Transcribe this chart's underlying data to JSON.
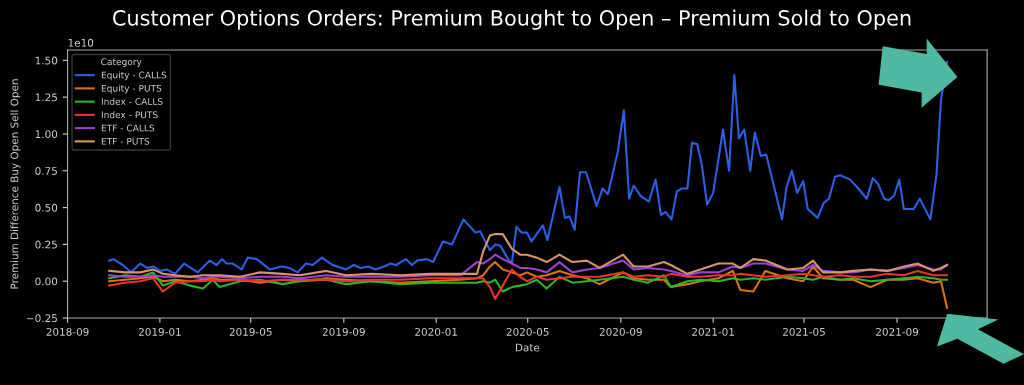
{
  "chart_data": {
    "type": "line",
    "title": "Customer Options Orders: Premium Bought to Open – Premium Sold to Open",
    "xlabel": "Date",
    "ylabel": "Premium Difference Buy Open Sell Open",
    "legend_title": "Category",
    "annotations": [
      "1e10"
    ],
    "x": [
      "2018-10-26",
      "2018-11-16",
      "2018-12-06",
      "2018-12-23",
      "2019-01-05",
      "2019-01-21",
      "2019-02-10",
      "2019-02-27",
      "2019-03-12",
      "2019-03-21",
      "2019-04-17",
      "2019-05-13",
      "2019-06-12",
      "2019-07-05",
      "2019-08-09",
      "2019-09-04",
      "2019-10-07",
      "2019-11-15",
      "2019-12-24",
      "2020-02-02",
      "2020-02-24",
      "2020-03-03",
      "2020-03-12",
      "2020-03-19",
      "2020-03-29",
      "2020-04-10",
      "2020-04-21",
      "2020-04-30",
      "2020-05-13",
      "2020-05-26",
      "2020-06-12",
      "2020-06-29",
      "2020-07-18",
      "2020-08-04",
      "2020-09-04",
      "2020-09-18",
      "2020-10-07",
      "2020-10-28",
      "2020-11-06",
      "2020-11-28",
      "2020-12-15",
      "2021-01-08",
      "2021-01-27",
      "2021-02-06",
      "2021-02-23",
      "2021-03-11",
      "2021-04-09",
      "2021-04-30",
      "2021-05-13",
      "2021-05-26",
      "2021-06-18",
      "2021-07-05",
      "2021-07-28",
      "2021-08-19",
      "2021-09-10",
      "2021-09-28",
      "2021-10-19",
      "2021-10-29",
      "2021-11-06"
    ],
    "series": [
      {
        "name": "Equity - CALLS",
        "color": "#2f5fe0",
        "x": [
          "2018-10-26",
          "2018-11-01",
          "2018-11-13",
          "2018-11-24",
          "2018-12-06",
          "2018-12-15",
          "2018-12-24",
          "2019-01-01",
          "2019-01-10",
          "2019-01-21",
          "2019-02-02",
          "2019-02-20",
          "2019-03-08",
          "2019-03-17",
          "2019-03-24",
          "2019-03-30",
          "2019-04-07",
          "2019-04-19",
          "2019-04-27",
          "2019-05-09",
          "2019-05-26",
          "2019-06-11",
          "2019-06-21",
          "2019-07-02",
          "2019-07-13",
          "2019-07-22",
          "2019-08-03",
          "2019-08-17",
          "2019-09-04",
          "2019-09-14",
          "2019-09-23",
          "2019-10-03",
          "2019-10-13",
          "2019-10-24",
          "2019-11-02",
          "2019-11-09",
          "2019-11-22",
          "2019-11-30",
          "2019-12-07",
          "2019-12-20",
          "2019-12-28",
          "2020-01-10",
          "2020-01-22",
          "2020-02-06",
          "2020-02-22",
          "2020-02-28",
          "2020-03-12",
          "2020-03-19",
          "2020-03-26",
          "2020-04-05",
          "2020-04-10",
          "2020-04-16",
          "2020-04-23",
          "2020-04-30",
          "2020-05-06",
          "2020-05-21",
          "2020-05-27",
          "2020-06-12",
          "2020-06-19",
          "2020-06-25",
          "2020-07-02",
          "2020-07-09",
          "2020-07-17",
          "2020-07-31",
          "2020-08-08",
          "2020-08-15",
          "2020-08-28",
          "2020-09-05",
          "2020-09-12",
          "2020-09-18",
          "2020-09-27",
          "2020-10-08",
          "2020-10-17",
          "2020-10-24",
          "2020-10-30",
          "2020-11-07",
          "2020-11-14",
          "2020-11-21",
          "2020-11-28",
          "2020-12-04",
          "2020-12-11",
          "2020-12-17",
          "2020-12-24",
          "2021-01-01",
          "2021-01-14",
          "2021-01-22",
          "2021-01-29",
          "2021-02-04",
          "2021-02-11",
          "2021-02-19",
          "2021-02-25",
          "2021-03-05",
          "2021-03-12",
          "2021-04-02",
          "2021-04-08",
          "2021-04-15",
          "2021-04-22",
          "2021-04-30",
          "2021-05-06",
          "2021-05-19",
          "2021-05-27",
          "2021-06-03",
          "2021-06-11",
          "2021-06-18",
          "2021-07-01",
          "2021-07-10",
          "2021-07-23",
          "2021-07-31",
          "2021-08-07",
          "2021-08-15",
          "2021-08-21",
          "2021-08-28",
          "2021-09-04",
          "2021-09-10",
          "2021-09-23",
          "2021-10-01",
          "2021-10-15",
          "2021-10-23",
          "2021-10-29",
          "2021-11-06"
        ],
        "values": [
          0.14,
          0.15,
          0.11,
          0.06,
          0.12,
          0.09,
          0.1,
          0.07,
          0.08,
          0.05,
          0.12,
          0.06,
          0.14,
          0.11,
          0.15,
          0.12,
          0.12,
          0.08,
          0.16,
          0.15,
          0.08,
          0.1,
          0.09,
          0.06,
          0.12,
          0.11,
          0.16,
          0.11,
          0.08,
          0.11,
          0.09,
          0.1,
          0.08,
          0.1,
          0.12,
          0.11,
          0.15,
          0.11,
          0.14,
          0.15,
          0.13,
          0.27,
          0.25,
          0.42,
          0.33,
          0.34,
          0.21,
          0.25,
          0.24,
          0.15,
          0.12,
          0.37,
          0.33,
          0.33,
          0.27,
          0.38,
          0.28,
          0.64,
          0.43,
          0.44,
          0.35,
          0.74,
          0.74,
          0.51,
          0.63,
          0.59,
          0.88,
          1.16,
          0.56,
          0.65,
          0.58,
          0.54,
          0.69,
          0.45,
          0.47,
          0.42,
          0.61,
          0.63,
          0.63,
          0.94,
          0.93,
          0.79,
          0.52,
          0.6,
          1.03,
          0.75,
          1.4,
          0.97,
          1.03,
          0.75,
          1.01,
          0.85,
          0.86,
          0.42,
          0.64,
          0.75,
          0.6,
          0.68,
          0.49,
          0.43,
          0.53,
          0.56,
          0.71,
          0.72,
          0.69,
          0.64,
          0.56,
          0.7,
          0.66,
          0.56,
          0.55,
          0.58,
          0.69,
          0.49,
          0.49,
          0.56,
          0.42,
          0.72,
          1.23,
          1.49
        ]
      },
      {
        "name": "Equity - PUTS",
        "color": "#d9730d",
        "values": [
          0.0,
          0.01,
          0.02,
          0.03,
          0.0,
          0.01,
          0.0,
          0.01,
          0.02,
          0.01,
          0.01,
          -0.01,
          0.01,
          0.0,
          0.02,
          0.01,
          0.0,
          -0.01,
          0.0,
          0.01,
          0.02,
          0.04,
          0.1,
          0.13,
          0.08,
          0.06,
          0.04,
          0.06,
          0.03,
          0.04,
          0.07,
          0.04,
          0.02,
          -0.02,
          0.06,
          0.02,
          0.01,
          0.01,
          -0.04,
          -0.02,
          0.0,
          0.02,
          0.07,
          -0.06,
          -0.07,
          0.07,
          0.02,
          0.0,
          0.1,
          0.02,
          0.01,
          0.01,
          -0.04,
          0.01,
          0.01,
          0.02,
          -0.01,
          0.0,
          -0.18
        ]
      },
      {
        "name": "Index - CALLS",
        "color": "#2bb52b",
        "values": [
          0.02,
          0.04,
          0.03,
          0.06,
          -0.03,
          0.0,
          -0.03,
          -0.05,
          0.01,
          -0.04,
          0.0,
          0.01,
          -0.02,
          0.0,
          0.01,
          -0.02,
          0.0,
          -0.02,
          -0.01,
          -0.01,
          -0.01,
          0.0,
          -0.01,
          0.01,
          -0.07,
          -0.04,
          -0.03,
          -0.02,
          0.01,
          -0.05,
          0.03,
          -0.01,
          0.0,
          0.01,
          0.03,
          0.01,
          -0.01,
          0.04,
          -0.04,
          0.0,
          0.01,
          0.0,
          0.02,
          0.01,
          0.02,
          0.01,
          0.03,
          0.02,
          0.01,
          0.03,
          0.01,
          0.02,
          0.0,
          0.01,
          0.02,
          0.03,
          0.02,
          0.01,
          0.01
        ]
      },
      {
        "name": "Index - PUTS",
        "color": "#e8332f",
        "values": [
          -0.03,
          -0.01,
          0.0,
          0.02,
          -0.07,
          -0.01,
          0.0,
          0.0,
          0.01,
          0.0,
          0.01,
          0.0,
          0.01,
          0.01,
          0.01,
          0.0,
          0.01,
          0.01,
          0.02,
          0.02,
          0.02,
          0.02,
          -0.04,
          -0.12,
          -0.03,
          0.08,
          0.03,
          0.0,
          0.03,
          0.01,
          0.02,
          0.03,
          0.03,
          0.03,
          0.06,
          0.03,
          0.04,
          0.03,
          0.05,
          0.03,
          0.03,
          0.04,
          0.04,
          0.05,
          0.04,
          0.03,
          0.04,
          0.05,
          0.04,
          0.03,
          0.04,
          0.03,
          0.03,
          0.05,
          0.04,
          0.07,
          0.04,
          0.04,
          0.04
        ]
      },
      {
        "name": "ETF - CALLS",
        "color": "#9b40d8",
        "values": [
          0.04,
          0.03,
          0.03,
          0.04,
          0.03,
          0.03,
          0.03,
          0.02,
          0.03,
          0.03,
          0.02,
          0.03,
          0.03,
          0.02,
          0.04,
          0.03,
          0.03,
          0.03,
          0.04,
          0.04,
          0.13,
          0.12,
          0.15,
          0.18,
          0.15,
          0.12,
          0.09,
          0.09,
          0.08,
          0.06,
          0.13,
          0.06,
          0.08,
          0.09,
          0.14,
          0.08,
          0.09,
          0.08,
          0.07,
          0.04,
          0.06,
          0.06,
          0.1,
          0.09,
          0.12,
          0.12,
          0.08,
          0.07,
          0.11,
          0.07,
          0.06,
          0.06,
          0.08,
          0.07,
          0.09,
          0.11,
          0.08,
          0.08,
          0.11
        ]
      },
      {
        "name": "ETF - PUTS",
        "color": "#d6956a",
        "values": [
          0.07,
          0.06,
          0.06,
          0.08,
          0.05,
          0.04,
          0.03,
          0.04,
          0.04,
          0.04,
          0.03,
          0.06,
          0.05,
          0.04,
          0.07,
          0.04,
          0.05,
          0.04,
          0.05,
          0.05,
          0.05,
          0.2,
          0.31,
          0.32,
          0.32,
          0.22,
          0.18,
          0.18,
          0.16,
          0.13,
          0.18,
          0.13,
          0.14,
          0.09,
          0.18,
          0.1,
          0.1,
          0.13,
          0.11,
          0.05,
          0.08,
          0.12,
          0.12,
          0.09,
          0.15,
          0.14,
          0.08,
          0.09,
          0.14,
          0.06,
          0.06,
          0.07,
          0.08,
          0.07,
          0.1,
          0.12,
          0.07,
          0.09,
          0.11
        ]
      }
    ],
    "xlim": [
      "2018-09-01",
      "2021-12-29"
    ],
    "xticks": [
      {
        "value": "2018-09-01",
        "label": "2018-09"
      },
      {
        "value": "2019-01-01",
        "label": "2019-01"
      },
      {
        "value": "2019-05-01",
        "label": "2019-05"
      },
      {
        "value": "2019-09-01",
        "label": "2019-09"
      },
      {
        "value": "2020-01-01",
        "label": "2020-01"
      },
      {
        "value": "2020-05-01",
        "label": "2020-05"
      },
      {
        "value": "2020-09-01",
        "label": "2020-09"
      },
      {
        "value": "2021-01-01",
        "label": "2021-01"
      },
      {
        "value": "2021-05-01",
        "label": "2021-05"
      },
      {
        "value": "2021-09-01",
        "label": "2021-09"
      }
    ],
    "ylim": [
      -0.25,
      1.57
    ],
    "yticks": [
      {
        "value": -0.25,
        "label": "−0.25"
      },
      {
        "value": 0,
        "label": "0.00"
      },
      {
        "value": 0.25,
        "label": "0.25"
      },
      {
        "value": 0.5,
        "label": "0.50"
      },
      {
        "value": 0.75,
        "label": "0.75"
      },
      {
        "value": 1,
        "label": "1.00"
      },
      {
        "value": 1.25,
        "label": "1.25"
      },
      {
        "value": 1.5,
        "label": "1.50"
      }
    ],
    "grid": false,
    "legend": "top left"
  }
}
